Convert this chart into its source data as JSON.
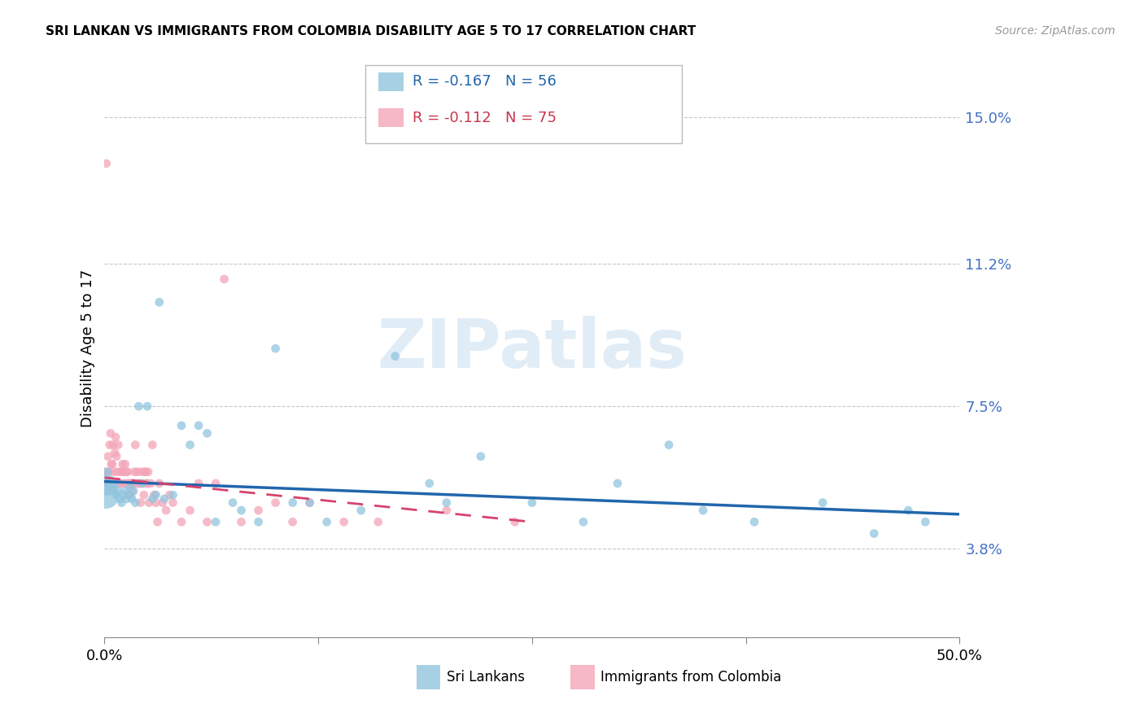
{
  "title": "SRI LANKAN VS IMMIGRANTS FROM COLOMBIA DISABILITY AGE 5 TO 17 CORRELATION CHART",
  "source": "Source: ZipAtlas.com",
  "ylabel": "Disability Age 5 to 17",
  "xlim": [
    0.0,
    50.0
  ],
  "ylim": [
    1.5,
    16.5
  ],
  "yticks": [
    3.8,
    7.5,
    11.2,
    15.0
  ],
  "ytick_labels": [
    "3.8%",
    "7.5%",
    "11.2%",
    "15.0%"
  ],
  "xticks": [
    0.0,
    12.5,
    25.0,
    37.5,
    50.0
  ],
  "xtick_labels": [
    "0.0%",
    "",
    "",
    "",
    "50.0%"
  ],
  "blue_color": "#92c5de",
  "pink_color": "#f4a5b8",
  "trend_blue": "#2166ac",
  "trend_pink": "#d6436e",
  "legend_r1": "R = -0.167",
  "legend_n1": "N = 56",
  "legend_r2": "R = -0.112",
  "legend_n2": "N = 75",
  "legend_label1": "Sri Lankans",
  "legend_label2": "Immigrants from Colombia",
  "watermark": "ZIPatlas",
  "blue_color_text": "#2166ac",
  "pink_color_text": "#c9374e",
  "right_axis_color": "#4472c4",
  "blue_x": [
    0.15,
    0.2,
    0.3,
    0.4,
    0.5,
    0.6,
    0.7,
    0.8,
    0.9,
    1.0,
    1.1,
    1.2,
    1.3,
    1.4,
    1.5,
    1.6,
    1.7,
    2.0,
    2.5,
    3.0,
    3.5,
    4.0,
    5.0,
    5.5,
    6.5,
    7.5,
    10.0,
    12.0,
    15.0,
    17.0,
    20.0,
    22.0,
    25.0,
    28.0,
    30.0,
    33.0,
    35.0,
    38.0,
    42.0,
    45.0,
    48.0,
    1.8,
    2.2,
    2.8,
    3.2,
    4.5,
    6.0,
    8.0,
    9.0,
    11.0,
    13.0,
    19.0,
    47.0,
    0.1,
    0.05,
    0.08
  ],
  "blue_y": [
    5.8,
    5.5,
    5.6,
    5.3,
    5.4,
    5.5,
    5.2,
    5.3,
    5.1,
    5.0,
    5.2,
    5.3,
    5.1,
    5.2,
    5.4,
    5.1,
    5.3,
    7.5,
    7.5,
    5.2,
    5.1,
    5.2,
    6.5,
    7.0,
    4.5,
    5.0,
    9.0,
    5.0,
    4.8,
    8.8,
    5.0,
    6.2,
    5.0,
    4.5,
    5.5,
    6.5,
    4.8,
    4.5,
    5.0,
    4.2,
    4.5,
    5.0,
    5.5,
    5.1,
    10.2,
    7.0,
    6.8,
    4.8,
    4.5,
    5.0,
    4.5,
    5.5,
    4.8,
    5.3,
    5.2,
    5.6
  ],
  "blue_size_base": 60,
  "blue_large_idx": 54,
  "blue_large_size": 600,
  "pink_x": [
    0.1,
    0.2,
    0.3,
    0.35,
    0.4,
    0.5,
    0.6,
    0.65,
    0.7,
    0.8,
    0.9,
    1.0,
    1.05,
    1.1,
    1.2,
    1.25,
    1.3,
    1.4,
    1.5,
    1.55,
    1.6,
    1.7,
    1.8,
    1.9,
    2.0,
    2.1,
    2.2,
    2.3,
    2.4,
    2.5,
    2.6,
    2.7,
    2.8,
    2.9,
    3.0,
    3.2,
    3.4,
    3.6,
    3.8,
    4.0,
    4.5,
    5.0,
    5.5,
    6.0,
    6.5,
    7.0,
    8.0,
    9.0,
    10.0,
    11.0,
    12.0,
    14.0,
    16.0,
    20.0,
    24.0,
    0.05,
    0.15,
    0.25,
    0.45,
    0.55,
    0.75,
    0.85,
    0.95,
    1.15,
    1.35,
    1.45,
    1.65,
    1.75,
    1.85,
    2.05,
    2.15,
    2.35,
    2.45,
    2.55,
    3.1
  ],
  "pink_y": [
    13.8,
    6.2,
    6.5,
    6.8,
    6.0,
    6.5,
    6.3,
    6.7,
    6.2,
    6.5,
    5.5,
    5.8,
    6.0,
    5.5,
    6.0,
    5.5,
    5.8,
    5.5,
    5.2,
    5.5,
    5.3,
    5.5,
    6.5,
    5.8,
    5.5,
    5.0,
    5.5,
    5.2,
    5.8,
    5.5,
    5.0,
    5.5,
    6.5,
    5.2,
    5.0,
    5.5,
    5.0,
    4.8,
    5.2,
    5.0,
    4.5,
    4.8,
    5.5,
    4.5,
    5.5,
    10.8,
    4.5,
    4.8,
    5.0,
    4.5,
    5.0,
    4.5,
    4.5,
    4.8,
    4.5,
    5.8,
    5.5,
    5.8,
    6.0,
    5.8,
    5.8,
    5.5,
    5.8,
    5.8,
    5.8,
    5.5,
    5.5,
    5.8,
    5.5,
    5.5,
    5.8,
    5.8,
    5.5,
    5.8,
    4.5
  ],
  "pink_size_base": 60,
  "blue_trend_x0": 0.0,
  "blue_trend_x1": 50.0,
  "blue_trend_y0": 5.55,
  "blue_trend_y1": 4.7,
  "pink_trend_x0": 0.0,
  "pink_trend_x1": 25.0,
  "pink_trend_y0": 5.65,
  "pink_trend_y1": 4.5
}
